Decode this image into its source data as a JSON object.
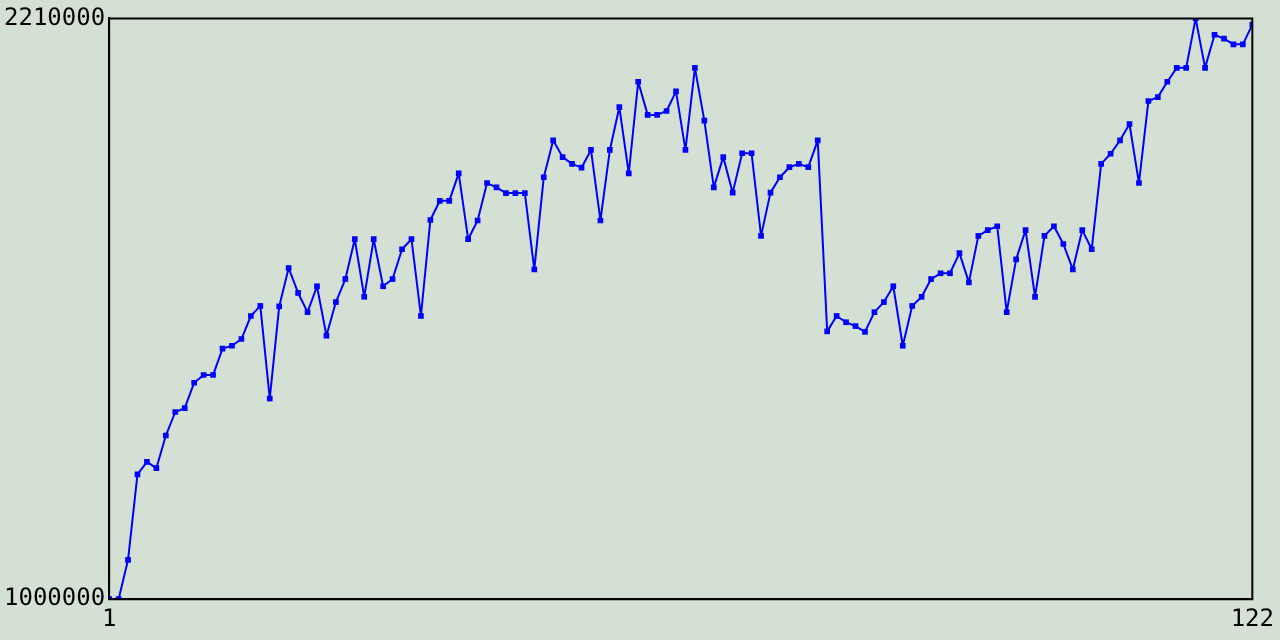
{
  "chart_data": {
    "type": "line",
    "x": [
      1,
      2,
      3,
      4,
      5,
      6,
      7,
      8,
      9,
      10,
      11,
      12,
      13,
      14,
      15,
      16,
      17,
      18,
      19,
      20,
      21,
      22,
      23,
      24,
      25,
      26,
      27,
      28,
      29,
      30,
      31,
      32,
      33,
      34,
      35,
      36,
      37,
      38,
      39,
      40,
      41,
      42,
      43,
      44,
      45,
      46,
      47,
      48,
      49,
      50,
      51,
      52,
      53,
      54,
      55,
      56,
      57,
      58,
      59,
      60,
      61,
      62,
      63,
      64,
      65,
      66,
      67,
      68,
      69,
      70,
      71,
      72,
      73,
      74,
      75,
      76,
      77,
      78,
      79,
      80,
      81,
      82,
      83,
      84,
      85,
      86,
      87,
      88,
      89,
      90,
      91,
      92,
      93,
      94,
      95,
      96,
      97,
      98,
      99,
      100,
      101,
      102,
      103,
      104,
      105,
      106,
      107,
      108,
      109,
      110,
      111,
      112,
      113,
      114,
      115,
      116,
      117,
      118,
      119,
      120,
      121,
      122
    ],
    "series": [
      {
        "color": "#0000ff",
        "values": [
          1000000,
          1000000,
          1082000,
          1260000,
          1286000,
          1273000,
          1341000,
          1390000,
          1398000,
          1451000,
          1467000,
          1467000,
          1522000,
          1528000,
          1542000,
          1590000,
          1611000,
          1418000,
          1610000,
          1690000,
          1638000,
          1598000,
          1652000,
          1549000,
          1619000,
          1667000,
          1750000,
          1630000,
          1750000,
          1652000,
          1667000,
          1729000,
          1750000,
          1590000,
          1790000,
          1830000,
          1830000,
          1887000,
          1750000,
          1789000,
          1867000,
          1858000,
          1846000,
          1846000,
          1846000,
          1687000,
          1879000,
          1956000,
          1921000,
          1907000,
          1899000,
          1936000,
          1789000,
          1936000,
          2025000,
          1887000,
          2078000,
          2009000,
          2009000,
          2017000,
          2058000,
          1936000,
          2107000,
          1997000,
          1858000,
          1921000,
          1847000,
          1929000,
          1929000,
          1757000,
          1847000,
          1879000,
          1900000,
          1907000,
          1900000,
          1956000,
          1558000,
          1590000,
          1577000,
          1569000,
          1557000,
          1598000,
          1619000,
          1652000,
          1528000,
          1611000,
          1630000,
          1667000,
          1679000,
          1679000,
          1721000,
          1660000,
          1757000,
          1769000,
          1777000,
          1598000,
          1708000,
          1769000,
          1630000,
          1757000,
          1777000,
          1740000,
          1687000,
          1769000,
          1729000,
          1907000,
          1928000,
          1956000,
          1990000,
          1867000,
          2038000,
          2046000,
          2078000,
          2107000,
          2107000,
          2210000,
          2107000,
          2176000,
          2168000,
          2156000,
          2156000,
          2197000
        ]
      }
    ],
    "xlim": [
      1,
      122
    ],
    "xticks": [
      1,
      122
    ],
    "ylim": [
      1000000,
      2210000
    ],
    "yticks": [
      1000000,
      2210000
    ],
    "grid": false,
    "legend": false,
    "marker": "square",
    "line_style": "solid"
  }
}
